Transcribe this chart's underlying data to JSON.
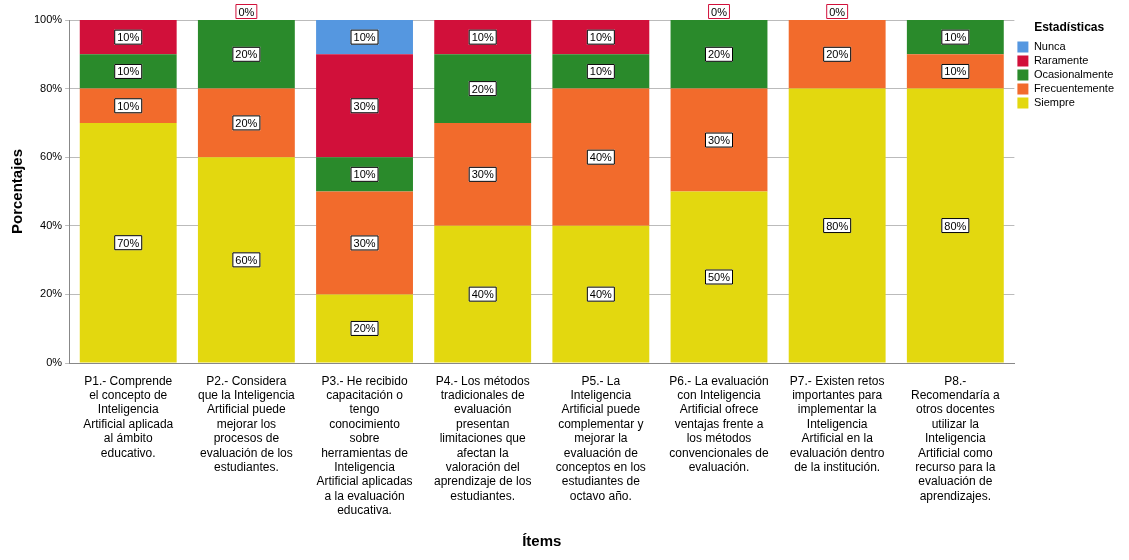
{
  "chart_data": {
    "type": "bar",
    "stacked": true,
    "xlabel": "Ítems",
    "ylabel": "Porcentajes",
    "legend_title": "Estadísticas",
    "legend": "top right",
    "grid": "y",
    "categories": [
      "P1.- Comprende el concepto de Inteligencia Artificial aplicada al ámbito educativo.",
      "P2.- Considera que la Inteligencia Artificial puede mejorar los procesos de evaluación de los estudiantes.",
      "P3.- He recibido capacitación o tengo conocimiento sobre herramientas de Inteligencia Artificial aplicadas a la evaluación educativa.",
      "P4.- Los métodos tradicionales de evaluación presentan limitaciones que afectan la valoración del aprendizaje de los estudiantes.",
      "P5.- La Inteligencia Artificial puede complementar y mejorar la evaluación de conceptos en los estudiantes de octavo año.",
      "P6.- La evaluación con Inteligencia Artificial ofrece ventajas frente a los métodos convencionales de evaluación.",
      "P7.- Existen retos importantes para implementar la Inteligencia Artificial en la evaluación dentro de la institución.",
      "P8.- Recomendaría a otros docentes utilizar la Inteligencia Artificial como recurso para la evaluación de aprendizajes."
    ],
    "ylim": [
      0,
      100
    ],
    "yticks": [
      {
        "value": 0,
        "label": "0%"
      },
      {
        "value": 20,
        "label": "20%"
      },
      {
        "value": 40,
        "label": "40%"
      },
      {
        "value": 60,
        "label": "60%"
      },
      {
        "value": 80,
        "label": "80%"
      },
      {
        "value": 100,
        "label": "100%"
      }
    ],
    "series": [
      {
        "name": "Siempre",
        "color": "#e3d80f",
        "values": [
          70,
          60,
          20,
          40,
          40,
          50,
          80,
          80
        ],
        "value_labels": [
          "70%",
          "60%",
          "20%",
          "40%",
          "40%",
          "50%",
          "80%",
          "80%"
        ]
      },
      {
        "name": "Frecuentemente",
        "color": "#f26b2c",
        "values": [
          10,
          20,
          30,
          30,
          40,
          30,
          20,
          10
        ],
        "value_labels": [
          "10%",
          "20%",
          "30%",
          "30%",
          "40%",
          "30%",
          "20%",
          "10%"
        ]
      },
      {
        "name": "Ocasionalmente",
        "color": "#2a8a2b",
        "values": [
          10,
          20,
          10,
          20,
          10,
          20,
          null,
          10
        ],
        "value_labels": [
          "10%",
          "20%",
          "10%",
          "20%",
          "10%",
          "20%",
          null,
          "10%"
        ]
      },
      {
        "name": "Raramente",
        "color": "#d1103a",
        "values": [
          10,
          0,
          30,
          10,
          10,
          0,
          0,
          null
        ],
        "value_labels": [
          "10%",
          "0%",
          "30%",
          "10%",
          "10%",
          "0%",
          "0%",
          null
        ]
      },
      {
        "name": "Nunca",
        "color": "#5597e0",
        "values": [
          null,
          null,
          10,
          null,
          null,
          null,
          null,
          null
        ],
        "value_labels": [
          null,
          null,
          "10%",
          null,
          null,
          null,
          null,
          null
        ]
      }
    ]
  }
}
